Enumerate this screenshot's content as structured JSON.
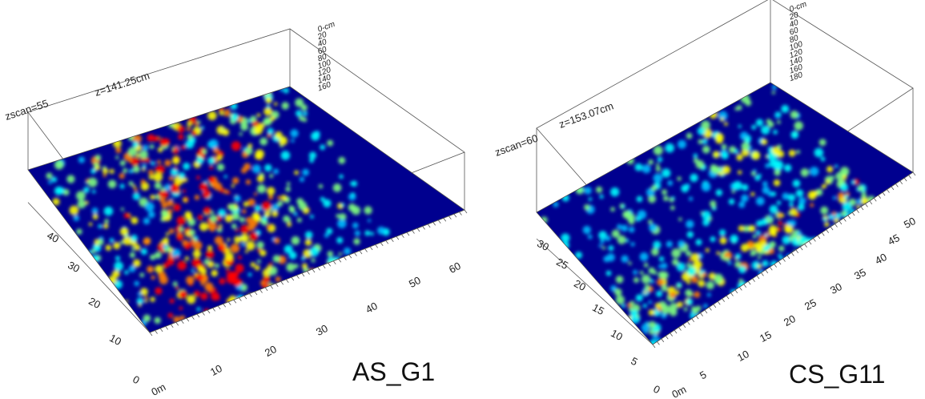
{
  "panels": [
    {
      "zscan_label": "zscan=55",
      "depth_label": "z=141.25cm",
      "depth_scale": [
        "0-cm",
        "20",
        "40",
        "60",
        "80",
        "100",
        "120",
        "140",
        "160"
      ],
      "y_axis": [
        "0",
        "10",
        "20",
        "30",
        "40"
      ],
      "x_axis": [
        "0m",
        "10",
        "20",
        "30",
        "40",
        "50",
        "60"
      ],
      "caption": "AS_G1"
    },
    {
      "zscan_label": "zscan=60",
      "depth_label": "z=153.07cm",
      "depth_scale": [
        "0-cm",
        "20",
        "40",
        "60",
        "80",
        "100",
        "120",
        "140",
        "160",
        "180"
      ],
      "y_axis": [
        "0",
        "5",
        "10",
        "15",
        "20",
        "25",
        "30"
      ],
      "x_axis": [
        "0m",
        "5",
        "10",
        "15",
        "20",
        "25",
        "30",
        "35",
        "40",
        "45",
        "50"
      ],
      "caption": "CS_G11"
    }
  ]
}
